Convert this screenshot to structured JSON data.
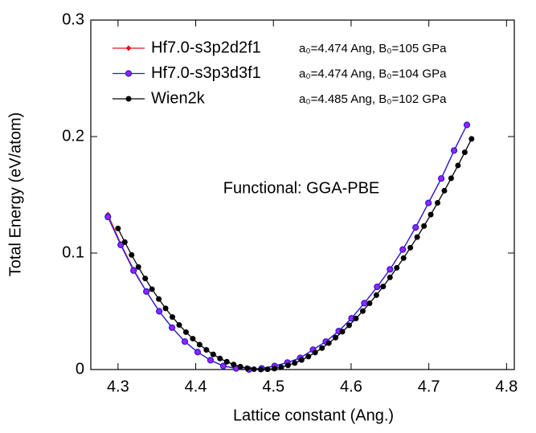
{
  "chart_data": {
    "type": "line",
    "annotation": "Functional: GGA-PBE",
    "xlabel": "Lattice constant (Ang.)",
    "ylabel": "Total Energy (eV/atom)",
    "xlim": [
      4.265,
      4.81
    ],
    "ylim": [
      0,
      0.3
    ],
    "xticks": [
      4.3,
      4.4,
      4.5,
      4.6,
      4.7,
      4.8
    ],
    "yticks": [
      0,
      0.1,
      0.2,
      0.3
    ],
    "legend": "upper left",
    "series": [
      {
        "name": "Hf7.0-s3p2d2f1",
        "note": "a₀=4.474 Ang, B₀=105 GPa",
        "color": "#e8141c",
        "marker": "diamond",
        "x": [
          4.287,
          4.3035,
          4.32,
          4.3365,
          4.353,
          4.3695,
          4.386,
          4.4025,
          4.419,
          4.4355,
          4.452,
          4.4685,
          4.485,
          4.5015,
          4.518,
          4.5345,
          4.551,
          4.5675,
          4.584,
          4.6005,
          4.617,
          4.6335,
          4.65,
          4.6665,
          4.683,
          4.6995,
          4.716,
          4.7325,
          4.749
        ],
        "values": [
          0.133,
          0.108,
          0.086,
          0.067,
          0.05,
          0.036,
          0.024,
          0.015,
          0.008,
          0.003,
          0.001,
          0,
          0.001,
          0.003,
          0.006,
          0.01,
          0.017,
          0.024,
          0.033,
          0.044,
          0.057,
          0.071,
          0.086,
          0.103,
          0.122,
          0.143,
          0.164,
          0.188,
          0.21
        ]
      },
      {
        "name": "Hf7.0-s3p3d3f1",
        "note": "a₀=4.474 Ang, B₀=104 GPa",
        "color": "#1c1ce0",
        "marker": "open-circle",
        "x": [
          4.287,
          4.3035,
          4.32,
          4.3365,
          4.353,
          4.3695,
          4.386,
          4.4025,
          4.419,
          4.4355,
          4.452,
          4.4685,
          4.485,
          4.5015,
          4.518,
          4.5345,
          4.551,
          4.5675,
          4.584,
          4.6005,
          4.617,
          4.6335,
          4.65,
          4.6665,
          4.683,
          4.6995,
          4.716,
          4.7325,
          4.749
        ],
        "values": [
          0.131,
          0.107,
          0.085,
          0.067,
          0.05,
          0.036,
          0.024,
          0.015,
          0.008,
          0.003,
          0.001,
          0,
          0.001,
          0.003,
          0.006,
          0.01,
          0.017,
          0.024,
          0.033,
          0.044,
          0.057,
          0.071,
          0.086,
          0.103,
          0.122,
          0.143,
          0.164,
          0.188,
          0.21
        ]
      },
      {
        "name": "Wien2k",
        "note": "a₀=4.485 Ang, B₀=102 GPa",
        "color": "#000000",
        "marker": "circle",
        "x": [
          4.3,
          4.30875,
          4.3175,
          4.32625,
          4.335,
          4.34375,
          4.3525,
          4.36125,
          4.37,
          4.37875,
          4.3875,
          4.39625,
          4.405,
          4.41375,
          4.4225,
          4.43125,
          4.44,
          4.44875,
          4.4575,
          4.46625,
          4.475,
          4.48375,
          4.4925,
          4.50125,
          4.51,
          4.51875,
          4.5275,
          4.53625,
          4.545,
          4.55375,
          4.5625,
          4.57125,
          4.58,
          4.58875,
          4.5975,
          4.60625,
          4.615,
          4.62375,
          4.6325,
          4.64125,
          4.65,
          4.65875,
          4.6675,
          4.67625,
          4.685,
          4.69375,
          4.7025,
          4.71125,
          4.72,
          4.72875,
          4.7375,
          4.74625,
          4.755
        ],
        "values": [
          0.1211,
          0.1094,
          0.0984,
          0.088,
          0.0782,
          0.069,
          0.0605,
          0.0525,
          0.0451,
          0.0383,
          0.0321,
          0.0265,
          0.0214,
          0.0169,
          0.013,
          0.0095,
          0.0067,
          0.0043,
          0.0025,
          0.0011,
          0.0003,
          0.0,
          0.0002,
          0.0008,
          0.002,
          0.0036,
          0.0056,
          0.0082,
          0.0111,
          0.0146,
          0.0184,
          0.0227,
          0.0274,
          0.0325,
          0.038,
          0.0439,
          0.0502,
          0.0569,
          0.0639,
          0.0713,
          0.0791,
          0.0873,
          0.0957,
          0.1046,
          0.1137,
          0.1232,
          0.133,
          0.1431,
          0.1535,
          0.1642,
          0.1752,
          0.1865,
          0.198
        ]
      }
    ]
  }
}
